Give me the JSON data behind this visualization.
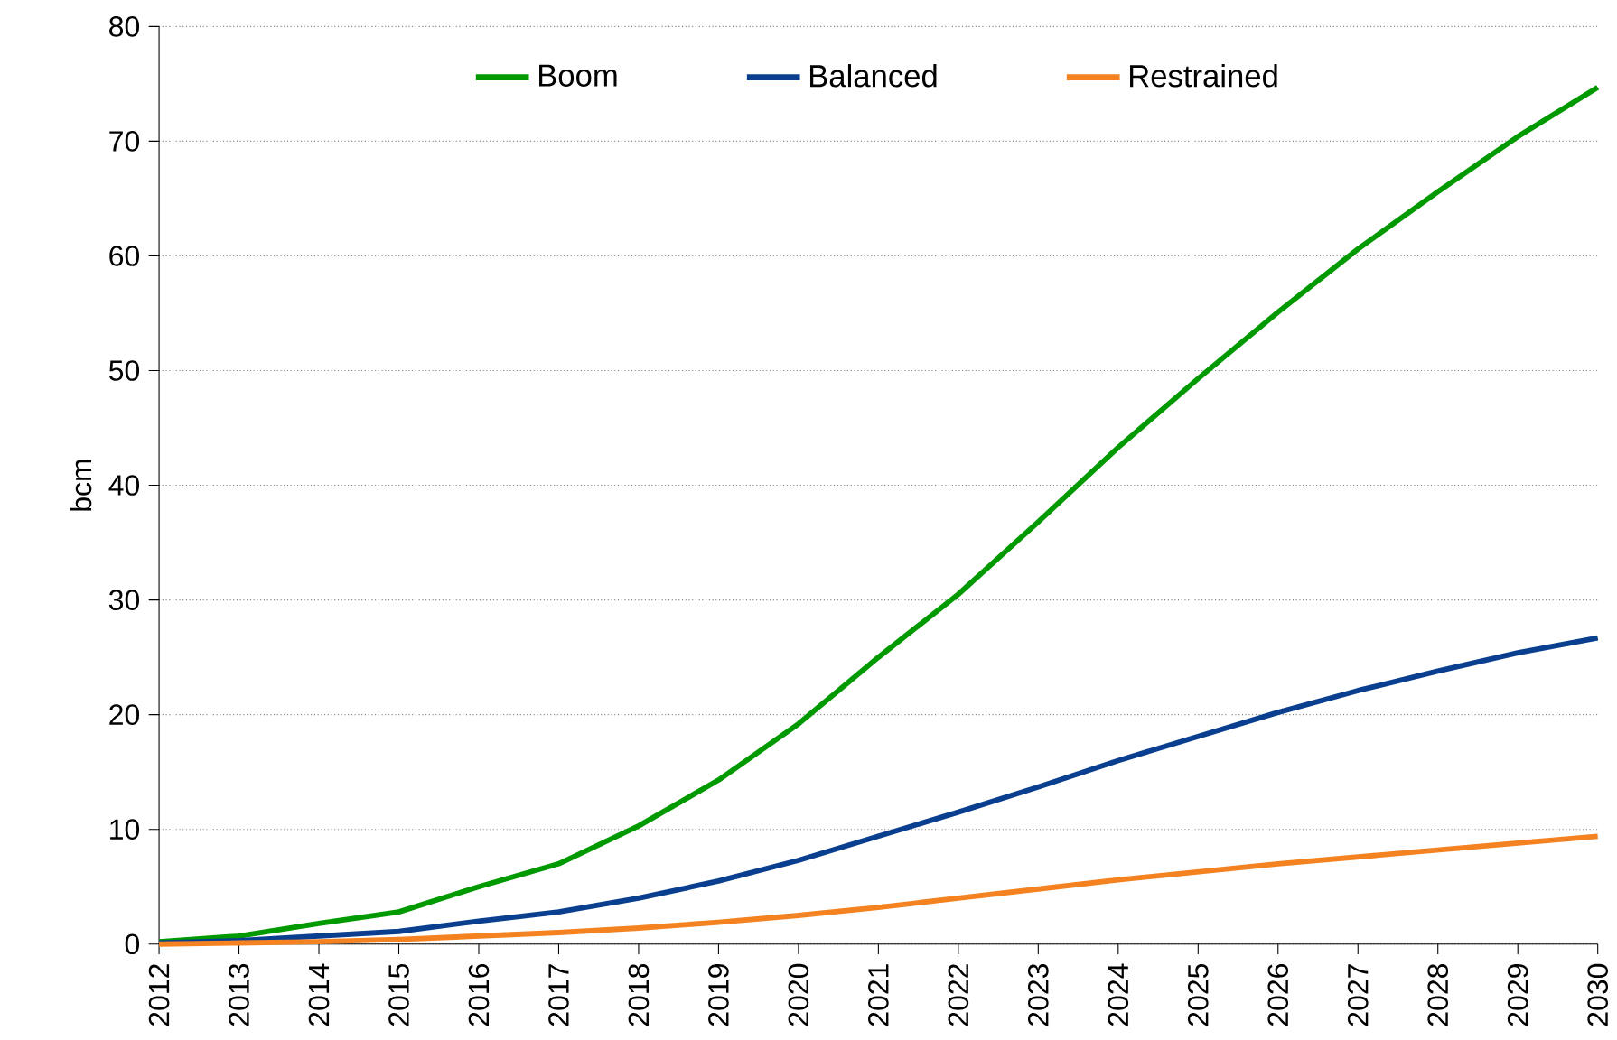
{
  "chart_data": {
    "type": "line",
    "ylabel": "bcm",
    "x": [
      2012,
      2013,
      2014,
      2015,
      2016,
      2017,
      2018,
      2019,
      2020,
      2021,
      2022,
      2023,
      2024,
      2025,
      2026,
      2027,
      2028,
      2029,
      2030
    ],
    "series": [
      {
        "name": "Boom",
        "color": "#009900",
        "values": [
          0.2,
          0.7,
          1.8,
          2.8,
          5.0,
          7.0,
          10.3,
          14.3,
          19.2,
          25.0,
          30.5,
          36.8,
          43.3,
          49.3,
          55.1,
          60.6,
          65.6,
          70.4,
          74.7
        ]
      },
      {
        "name": "Balanced",
        "color": "#0a3f8f",
        "values": [
          0.1,
          0.3,
          0.7,
          1.1,
          2.0,
          2.8,
          4.0,
          5.5,
          7.3,
          9.4,
          11.5,
          13.7,
          16.0,
          18.1,
          20.2,
          22.1,
          23.8,
          25.4,
          26.7
        ]
      },
      {
        "name": "Restrained",
        "color": "#f58220",
        "values": [
          0.0,
          0.1,
          0.2,
          0.4,
          0.7,
          1.0,
          1.4,
          1.9,
          2.5,
          3.2,
          4.0,
          4.8,
          5.6,
          6.3,
          7.0,
          7.6,
          8.2,
          8.8,
          9.4
        ]
      }
    ],
    "xlim": [
      2012,
      2030
    ],
    "xticks": [
      2012,
      2013,
      2014,
      2015,
      2016,
      2017,
      2018,
      2019,
      2020,
      2021,
      2022,
      2023,
      2024,
      2025,
      2026,
      2027,
      2028,
      2029,
      2030
    ],
    "ylim": [
      0,
      80
    ],
    "yticks": [
      0,
      10,
      20,
      30,
      40,
      50,
      60,
      70,
      80
    ],
    "grid": "y",
    "legend": "top",
    "marker": "none",
    "line_style": "solid"
  }
}
